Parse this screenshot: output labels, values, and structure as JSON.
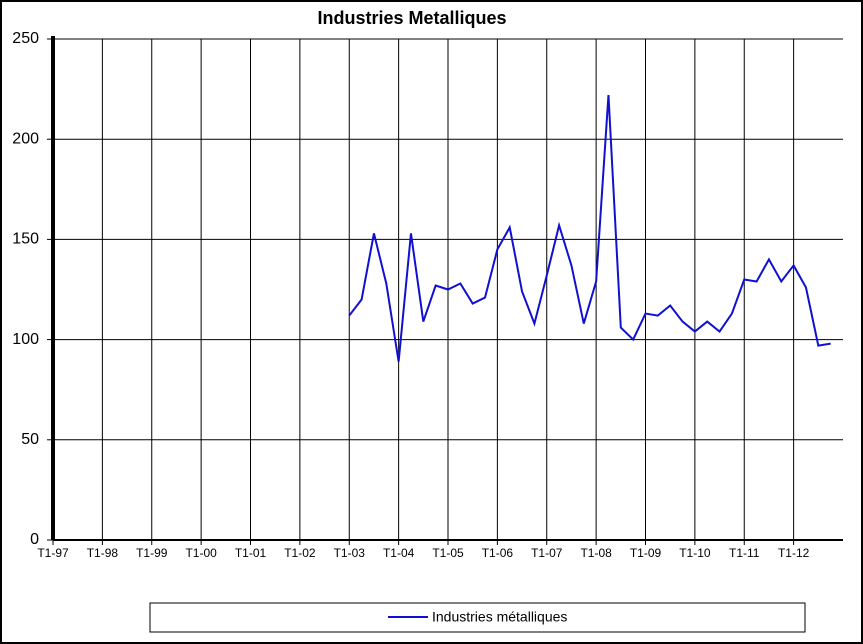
{
  "chart_data": {
    "type": "line",
    "title": "Industries Metalliques",
    "categories": [
      "T1-97",
      null,
      null,
      null,
      "T1-98",
      null,
      null,
      null,
      "T1-99",
      null,
      null,
      null,
      "T1-00",
      null,
      null,
      null,
      "T1-01",
      null,
      null,
      null,
      "T1-02",
      null,
      null,
      null,
      "T1-03",
      null,
      null,
      null,
      "T1-04",
      null,
      null,
      null,
      "T1-05",
      null,
      null,
      null,
      "T1-06",
      null,
      null,
      null,
      "T1-07",
      null,
      null,
      null,
      "T1-08",
      null,
      null,
      null,
      "T1-09",
      null,
      null,
      null,
      "T1-10",
      null,
      null,
      null,
      "T1-11",
      null,
      null,
      null,
      "T1-12",
      null,
      null,
      null
    ],
    "series": [
      {
        "name": "Industries métalliques",
        "color": "#1010d0",
        "values": [
          null,
          null,
          null,
          null,
          null,
          null,
          null,
          null,
          null,
          null,
          null,
          null,
          null,
          null,
          null,
          null,
          null,
          null,
          null,
          null,
          null,
          null,
          null,
          null,
          112,
          120,
          153,
          128,
          89,
          153,
          109,
          127,
          125,
          128,
          118,
          121,
          145,
          156,
          124,
          108,
          132,
          157,
          137,
          108,
          129,
          222,
          106,
          100,
          113,
          112,
          117,
          109,
          104,
          109,
          104,
          113,
          130,
          129,
          140,
          129,
          137,
          126,
          97,
          98
        ]
      }
    ],
    "ylim": [
      0,
      250
    ],
    "yticks": [
      0,
      50,
      100,
      150,
      200,
      250
    ],
    "grid": true,
    "legend": "bottom"
  }
}
